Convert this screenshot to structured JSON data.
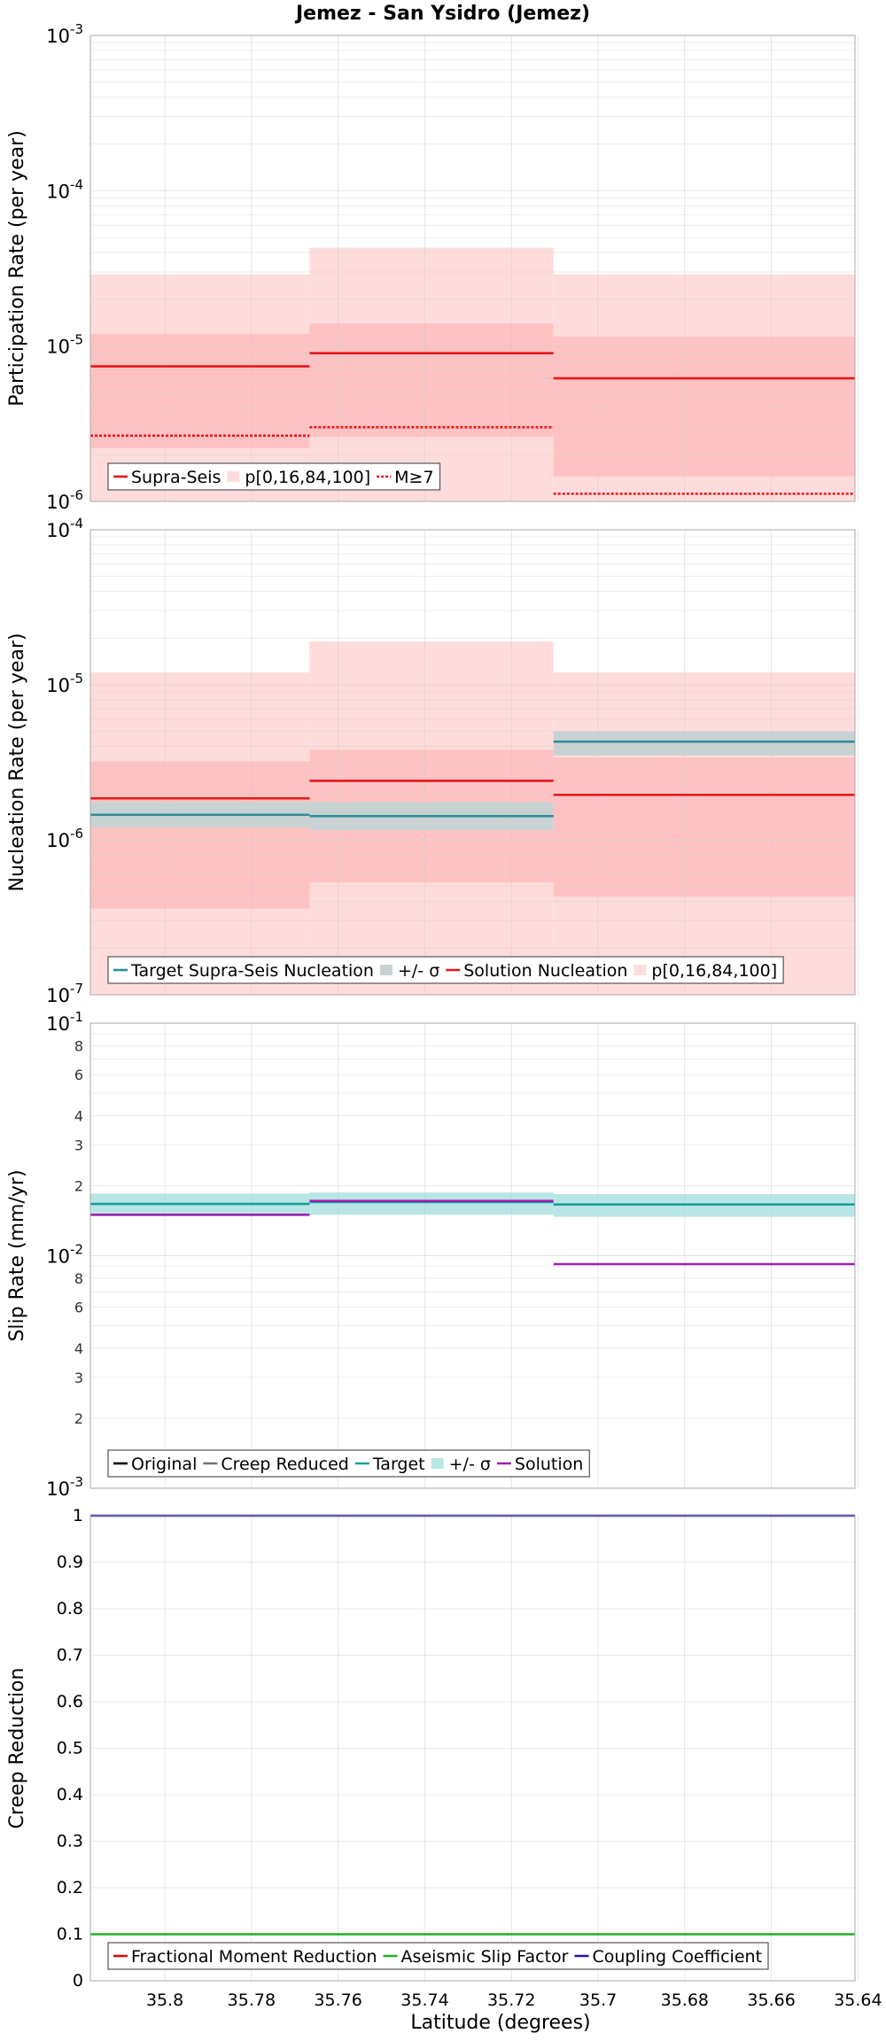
{
  "figure": {
    "title": "Jemez - San Ysidro (Jemez)",
    "xlabel": "Latitude (degrees)",
    "x_ticks": [
      "35.8",
      "35.78",
      "35.76",
      "35.74",
      "35.72",
      "35.7",
      "35.68",
      "35.66",
      "35.64"
    ]
  },
  "chart_data": [
    {
      "type": "line",
      "ylabel": "Participation Rate (per year)",
      "yscale": "log",
      "ylim": [
        1e-06,
        0.001
      ],
      "xlim": [
        35.8172,
        35.6407
      ],
      "y_ticks": [
        {
          "v": 0.001,
          "base": "10",
          "exp": "-3"
        },
        {
          "v": 0.0001,
          "base": "10",
          "exp": "-4"
        },
        {
          "v": 1e-05,
          "base": "10",
          "exp": "-5"
        },
        {
          "v": 1e-06,
          "base": "10",
          "exp": "-6"
        }
      ],
      "bands": [
        {
          "name": "p[0,16,84,100]",
          "color": "#ffdcdc",
          "segments": [
            {
              "x0": 35.8172,
              "x1": 35.7666,
              "lo": 1e-06,
              "hi": 2.9e-05
            },
            {
              "x0": 35.7666,
              "x1": 35.7103,
              "lo": 1e-06,
              "hi": 4.3e-05
            },
            {
              "x0": 35.7103,
              "x1": 35.6407,
              "lo": 1e-06,
              "hi": 2.9e-05
            }
          ]
        },
        {
          "name": "p[16,84]",
          "color": "#ffc2c2",
          "segments": [
            {
              "x0": 35.8172,
              "x1": 35.7666,
              "lo": 2.2e-06,
              "hi": 1.2e-05
            },
            {
              "x0": 35.7666,
              "x1": 35.7103,
              "lo": 2.6e-06,
              "hi": 1.4e-05
            },
            {
              "x0": 35.7103,
              "x1": 35.6407,
              "lo": 1.45e-06,
              "hi": 1.15e-05
            }
          ]
        }
      ],
      "series": [
        {
          "name": "Supra-Seis",
          "color": "#e8161b",
          "dash": "",
          "segments": [
            {
              "x0": 35.8172,
              "x1": 35.7666,
              "y": 7.4e-06
            },
            {
              "x0": 35.7666,
              "x1": 35.7103,
              "y": 9e-06
            },
            {
              "x0": 35.7103,
              "x1": 35.6407,
              "y": 6.2e-06
            }
          ]
        },
        {
          "name": "M≥7",
          "color": "#e8161b",
          "dash": "3,2",
          "segments": [
            {
              "x0": 35.8172,
              "x1": 35.7666,
              "y": 2.65e-06
            },
            {
              "x0": 35.7666,
              "x1": 35.7103,
              "y": 3e-06
            },
            {
              "x0": 35.7103,
              "x1": 35.6407,
              "y": 1.12e-06
            }
          ]
        }
      ],
      "legend": {
        "position": "bottom-left",
        "entries": [
          {
            "label": "Supra-Seis",
            "kind": "line",
            "color": "#e8161b"
          },
          {
            "label": "p[0,16,84,100]",
            "kind": "band",
            "color": "#ffdcdc"
          },
          {
            "label": "M≥7",
            "kind": "dotted",
            "color": "#e8161b"
          }
        ]
      }
    },
    {
      "type": "line",
      "ylabel": "Nucleation Rate (per year)",
      "yscale": "log",
      "ylim": [
        1e-07,
        0.0001
      ],
      "xlim": [
        35.8172,
        35.6407
      ],
      "y_ticks": [
        {
          "v": 0.0001,
          "base": "10",
          "exp": "-4"
        },
        {
          "v": 1e-05,
          "base": "10",
          "exp": "-5"
        },
        {
          "v": 1e-06,
          "base": "10",
          "exp": "-6"
        },
        {
          "v": 1e-07,
          "base": "10",
          "exp": "-7"
        }
      ],
      "bands": [
        {
          "name": "p[0,16,84,100]",
          "color": "#ffdcdc",
          "segments": [
            {
              "x0": 35.8172,
              "x1": 35.7666,
              "lo": 1e-07,
              "hi": 1.2e-05
            },
            {
              "x0": 35.7666,
              "x1": 35.7103,
              "lo": 1e-07,
              "hi": 1.9e-05
            },
            {
              "x0": 35.7103,
              "x1": 35.6407,
              "lo": 1e-07,
              "hi": 1.2e-05
            }
          ]
        },
        {
          "name": "p[16,84]",
          "color": "#ffc2c2",
          "segments": [
            {
              "x0": 35.8172,
              "x1": 35.7666,
              "lo": 3.6e-07,
              "hi": 3.2e-06
            },
            {
              "x0": 35.7666,
              "x1": 35.7103,
              "lo": 5.3e-07,
              "hi": 3.8e-06
            },
            {
              "x0": 35.7103,
              "x1": 35.6407,
              "lo": 4.3e-07,
              "hi": 3.4e-06
            }
          ]
        },
        {
          "name": "+/- σ",
          "color": "#c9d2d2",
          "segments": [
            {
              "x0": 35.8172,
              "x1": 35.7666,
              "lo": 1.2e-06,
              "hi": 1.75e-06
            },
            {
              "x0": 35.7666,
              "x1": 35.7103,
              "lo": 1.15e-06,
              "hi": 1.75e-06
            },
            {
              "x0": 35.7103,
              "x1": 35.6407,
              "lo": 3.5e-06,
              "hi": 5e-06
            }
          ]
        }
      ],
      "series": [
        {
          "name": "Solution Nucleation",
          "color": "#e8161b",
          "dash": "",
          "segments": [
            {
              "x0": 35.8172,
              "x1": 35.7666,
              "y": 1.85e-06
            },
            {
              "x0": 35.7666,
              "x1": 35.7103,
              "y": 2.4e-06
            },
            {
              "x0": 35.7103,
              "x1": 35.6407,
              "y": 1.95e-06
            }
          ]
        },
        {
          "name": "Target Supra-Seis Nucleation",
          "color": "#2f8f96",
          "dash": "",
          "segments": [
            {
              "x0": 35.8172,
              "x1": 35.7666,
              "y": 1.45e-06
            },
            {
              "x0": 35.7666,
              "x1": 35.7103,
              "y": 1.42e-06
            },
            {
              "x0": 35.7103,
              "x1": 35.6407,
              "y": 4.3e-06
            }
          ]
        }
      ],
      "legend": {
        "position": "bottom-left",
        "entries": [
          {
            "label": "Target Supra-Seis Nucleation",
            "kind": "line",
            "color": "#2f8f96"
          },
          {
            "label": "+/- σ",
            "kind": "band",
            "color": "#c9d2d2"
          },
          {
            "label": "Solution Nucleation",
            "kind": "line",
            "color": "#e8161b"
          },
          {
            "label": "p[0,16,84,100]",
            "kind": "band",
            "color": "#ffdcdc"
          }
        ]
      }
    },
    {
      "type": "line",
      "ylabel": "Slip Rate (mm/yr)",
      "yscale": "log",
      "ylim": [
        0.001,
        0.1
      ],
      "xlim": [
        35.8172,
        35.6407
      ],
      "y_ticks": [
        {
          "v": 0.1,
          "base": "10",
          "exp": "-1"
        },
        {
          "v": 0.08,
          "label": "8"
        },
        {
          "v": 0.06,
          "label": "6"
        },
        {
          "v": 0.04,
          "label": "4"
        },
        {
          "v": 0.03,
          "label": "3"
        },
        {
          "v": 0.02,
          "label": "2"
        },
        {
          "v": 0.01,
          "base": "10",
          "exp": "-2"
        },
        {
          "v": 0.008,
          "label": "8"
        },
        {
          "v": 0.006,
          "label": "6"
        },
        {
          "v": 0.004,
          "label": "4"
        },
        {
          "v": 0.003,
          "label": "3"
        },
        {
          "v": 0.002,
          "label": "2"
        },
        {
          "v": 0.001,
          "base": "10",
          "exp": "-3"
        }
      ],
      "bands": [
        {
          "name": "+/- σ",
          "color": "#b8e6e6",
          "segments": [
            {
              "x0": 35.8172,
              "x1": 35.7666,
              "lo": 0.0148,
              "hi": 0.0185
            },
            {
              "x0": 35.7666,
              "x1": 35.7103,
              "lo": 0.015,
              "hi": 0.0187
            },
            {
              "x0": 35.7103,
              "x1": 35.6407,
              "lo": 0.0147,
              "hi": 0.0184
            }
          ]
        }
      ],
      "series": [
        {
          "name": "Target",
          "color": "#1a9e96",
          "dash": "",
          "segments": [
            {
              "x0": 35.8172,
              "x1": 35.7666,
              "y": 0.0167
            },
            {
              "x0": 35.7666,
              "x1": 35.7103,
              "y": 0.017
            },
            {
              "x0": 35.7103,
              "x1": 35.6407,
              "y": 0.0166
            }
          ]
        },
        {
          "name": "Solution",
          "color": "#a020b0",
          "dash": "",
          "segments": [
            {
              "x0": 35.8172,
              "x1": 35.7666,
              "y": 0.015
            },
            {
              "x0": 35.7666,
              "x1": 35.7103,
              "y": 0.0172
            },
            {
              "x0": 35.7103,
              "x1": 35.6407,
              "y": 0.0092
            }
          ]
        }
      ],
      "legend": {
        "position": "bottom-left",
        "entries": [
          {
            "label": "Original",
            "kind": "line",
            "color": "#000000"
          },
          {
            "label": "Creep Reduced",
            "kind": "line",
            "color": "#707070"
          },
          {
            "label": "Target",
            "kind": "line",
            "color": "#1a9e96"
          },
          {
            "label": "+/- σ",
            "kind": "band",
            "color": "#b8e6e6"
          },
          {
            "label": "Solution",
            "kind": "line",
            "color": "#a020b0"
          }
        ]
      }
    },
    {
      "type": "line",
      "ylabel": "Creep Reduction",
      "yscale": "linear",
      "ylim": [
        0,
        1
      ],
      "xlim": [
        35.8172,
        35.6407
      ],
      "y_ticks": [
        {
          "v": 1,
          "label": "1"
        },
        {
          "v": 0.9,
          "label": "0.9"
        },
        {
          "v": 0.8,
          "label": "0.8"
        },
        {
          "v": 0.7,
          "label": "0.7"
        },
        {
          "v": 0.6,
          "label": "0.6"
        },
        {
          "v": 0.5,
          "label": "0.5"
        },
        {
          "v": 0.4,
          "label": "0.4"
        },
        {
          "v": 0.3,
          "label": "0.3"
        },
        {
          "v": 0.2,
          "label": "0.2"
        },
        {
          "v": 0.1,
          "label": "0.1"
        },
        {
          "v": 0,
          "label": "0"
        }
      ],
      "bands": [],
      "series": [
        {
          "name": "Coupling Coefficient",
          "color": "#1a1aa0",
          "dash": "",
          "segments": [
            {
              "x0": 35.8172,
              "x1": 35.6407,
              "y": 1.0
            }
          ]
        },
        {
          "name": "Aseismic Slip Factor",
          "color": "#20b020",
          "dash": "",
          "segments": [
            {
              "x0": 35.8172,
              "x1": 35.6407,
              "y": 0.1
            }
          ]
        }
      ],
      "legend": {
        "position": "bottom-left",
        "entries": [
          {
            "label": "Fractional Moment Reduction",
            "kind": "line",
            "color": "#d01010"
          },
          {
            "label": "Aseismic Slip Factor",
            "kind": "line",
            "color": "#20b020"
          },
          {
            "label": "Coupling Coefficient",
            "kind": "line",
            "color": "#1a1aa0"
          }
        ]
      }
    }
  ]
}
